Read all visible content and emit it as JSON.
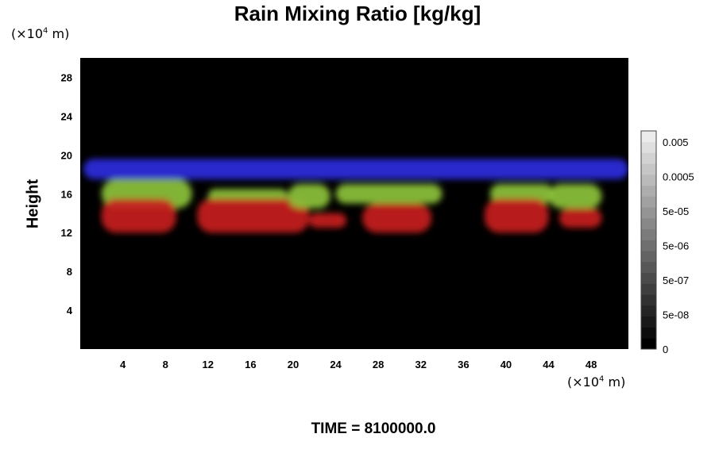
{
  "chart_data": {
    "type": "heatmap",
    "title": "Rain Mixing Ratio [kg/kg]",
    "ylabel": "Height",
    "x_unit": {
      "prefix": "(×10",
      "exp": "4",
      "suffix": " m)"
    },
    "y_unit": {
      "prefix": "(×10",
      "exp": "4",
      "suffix": " m)"
    },
    "xlim": [
      0,
      51.5
    ],
    "ylim": [
      0,
      30
    ],
    "x_ticks": [
      "4",
      "8",
      "12",
      "16",
      "20",
      "24",
      "28",
      "32",
      "36",
      "40",
      "44",
      "48"
    ],
    "y_ticks": [
      "4",
      "8",
      "12",
      "16",
      "20",
      "24",
      "28"
    ],
    "colorbar": {
      "labels": [
        "0.005",
        "0.0005",
        "5e-05",
        "5e-06",
        "5e-07",
        "5e-08",
        "0"
      ],
      "levels": 20,
      "range": [
        0,
        0.05
      ]
    },
    "time_label": "TIME = 8100000.0",
    "colors": {
      "background": "#000000",
      "blue_band": "#2a2ae0",
      "green_band": "#8cc23a",
      "red_band": "#c8201e"
    },
    "regions": [
      {
        "name": "blue",
        "x": [
          0.3,
          51.5
        ],
        "y": [
          17.5,
          19.6
        ]
      },
      {
        "name": "green",
        "x": [
          2,
          10.5
        ],
        "y": [
          14.5,
          17.5
        ]
      },
      {
        "name": "red",
        "x": [
          2,
          9
        ],
        "y": [
          12,
          15.5
        ]
      },
      {
        "name": "green",
        "x": [
          12,
          19.5
        ],
        "y": [
          15,
          16.5
        ]
      },
      {
        "name": "red",
        "x": [
          11,
          21.5
        ],
        "y": [
          12,
          15.5
        ]
      },
      {
        "name": "green",
        "x": [
          19.5,
          23.5
        ],
        "y": [
          14.5,
          17
        ]
      },
      {
        "name": "red",
        "x": [
          21.5,
          25
        ],
        "y": [
          12.5,
          14
        ]
      },
      {
        "name": "green",
        "x": [
          24,
          34
        ],
        "y": [
          15,
          17
        ]
      },
      {
        "name": "red",
        "x": [
          26.5,
          33
        ],
        "y": [
          12,
          15
        ]
      },
      {
        "name": "green",
        "x": [
          38.5,
          44.5
        ],
        "y": [
          15,
          17
        ]
      },
      {
        "name": "red",
        "x": [
          38,
          44
        ],
        "y": [
          12,
          15.5
        ]
      },
      {
        "name": "green",
        "x": [
          44,
          49
        ],
        "y": [
          14.5,
          17
        ]
      },
      {
        "name": "red",
        "x": [
          45,
          49
        ],
        "y": [
          12.5,
          14.5
        ]
      }
    ]
  }
}
